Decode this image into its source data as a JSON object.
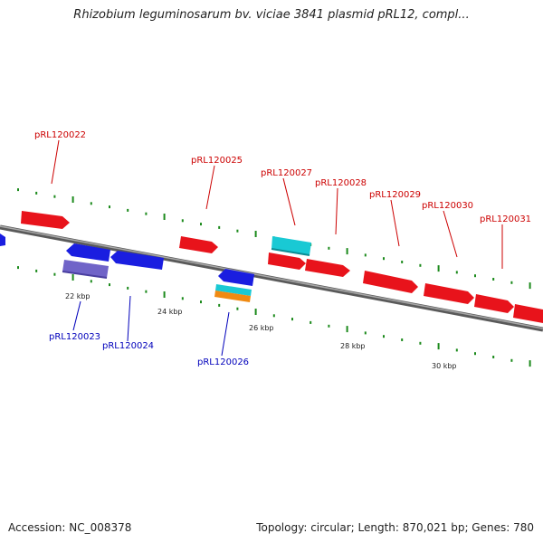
{
  "title": "Rhizobium leguminosarum bv. viciae 3841 plasmid pRL12, compl...",
  "footer": {
    "accession_label": "Accession:",
    "accession": "NC_008378",
    "topology_label": "Topology:",
    "topology": "circular",
    "length_label": "Length:",
    "length": "870,021 bp",
    "genes_label": "Genes:",
    "genes": "780"
  },
  "colors": {
    "forward": "#e8131b",
    "reverse": "#1a1ee0",
    "cyan": "#19c9d4",
    "orange": "#f08a12",
    "purple": "#7064c8",
    "backbone": "#7a7a7a",
    "tick": "#1c8a1c",
    "label_forward": "#cc0000",
    "label_reverse": "#0000bb"
  },
  "scale_labels": [
    "22 kbp",
    "24 kbp",
    "26 kbp",
    "28 kbp",
    "30 kbp"
  ],
  "gene_labels": {
    "forward": [
      "pRL120022",
      "pRL120025",
      "pRL120027",
      "pRL120028",
      "pRL120029",
      "pRL120030",
      "pRL120031"
    ],
    "reverse": [
      "pRL120023",
      "pRL120024",
      "pRL120026"
    ]
  }
}
